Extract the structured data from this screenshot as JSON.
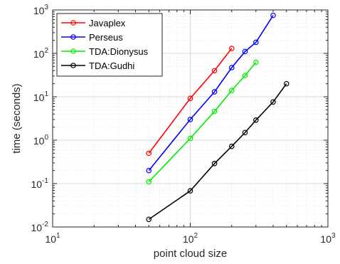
{
  "chart_data": {
    "type": "line",
    "title": "",
    "xlabel": "point cloud size",
    "ylabel": "time (seconds)",
    "x_scale": "log",
    "y_scale": "log",
    "xlim": [
      10,
      1000
    ],
    "ylim": [
      0.01,
      1000
    ],
    "grid": true,
    "legend_position": "top-left",
    "x_ticks": [
      {
        "base": "10",
        "exp": "1",
        "value": 10
      },
      {
        "base": "10",
        "exp": "2",
        "value": 100
      },
      {
        "base": "10",
        "exp": "3",
        "value": 1000
      }
    ],
    "y_ticks": [
      {
        "base": "10",
        "exp": "-2",
        "value": 0.01
      },
      {
        "base": "10",
        "exp": "-1",
        "value": 0.1
      },
      {
        "base": "10",
        "exp": "0",
        "value": 1
      },
      {
        "base": "10",
        "exp": "1",
        "value": 10
      },
      {
        "base": "10",
        "exp": "2",
        "value": 100
      },
      {
        "base": "10",
        "exp": "3",
        "value": 1000
      }
    ],
    "series": [
      {
        "name": "Javaplex",
        "color": "#ff0000",
        "x": [
          50,
          100,
          150,
          200
        ],
        "y": [
          0.5,
          9.2,
          40,
          130
        ]
      },
      {
        "name": "Perseus",
        "color": "#0000ff",
        "x": [
          50,
          100,
          150,
          200,
          250,
          300,
          400
        ],
        "y": [
          0.2,
          3.0,
          13,
          47,
          110,
          180,
          750
        ]
      },
      {
        "name": "TDA:Dionysus",
        "color": "#00ee00",
        "x": [
          50,
          100,
          150,
          200,
          250,
          300
        ],
        "y": [
          0.11,
          1.1,
          4.6,
          14,
          31,
          62
        ]
      },
      {
        "name": "TDA:Gudhi",
        "color": "#000000",
        "x": [
          50,
          100,
          150,
          200,
          250,
          300,
          400,
          500
        ],
        "y": [
          0.015,
          0.068,
          0.29,
          0.72,
          1.5,
          2.9,
          7.6,
          20
        ]
      }
    ]
  }
}
